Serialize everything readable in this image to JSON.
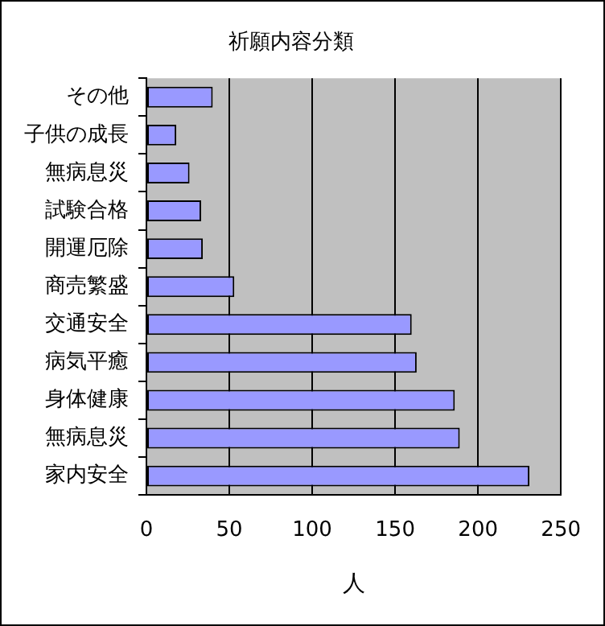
{
  "chart_data": {
    "type": "bar",
    "orientation": "horizontal",
    "title": "祈願内容分類",
    "xlabel": "人",
    "categories": [
      "その他",
      "子供の成長",
      "無病息災",
      "試験合格",
      "開運厄除",
      "商売繁盛",
      "交通安全",
      "病気平癒",
      "身体健康",
      "無病息災",
      "家内安全"
    ],
    "values": [
      40,
      18,
      26,
      33,
      34,
      53,
      160,
      163,
      186,
      189,
      231
    ],
    "color": "#9999ff",
    "xlim": [
      0,
      250
    ],
    "xticks": [
      0,
      50,
      100,
      150,
      200,
      250
    ],
    "grid": "x"
  }
}
